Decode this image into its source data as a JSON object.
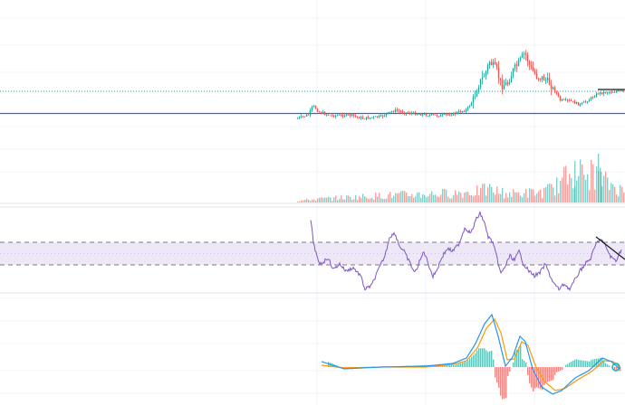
{
  "chart_data": [
    {
      "type": "candlestick",
      "pane": "price",
      "title": "",
      "horizontal_lines": [
        {
          "style": "dotted",
          "color": "#26a69a",
          "level": 0.72
        },
        {
          "style": "solid",
          "color": "#2962ff",
          "level": 0.28
        }
      ],
      "trendline": {
        "color": "#131722",
        "style": "solid"
      }
    },
    {
      "type": "bar",
      "pane": "volume",
      "title": "",
      "colors": {
        "up": "#26a69a",
        "down": "#ef5350"
      }
    },
    {
      "type": "line",
      "pane": "rsi",
      "title": "",
      "band": {
        "upper": 70,
        "lower": 30,
        "fill": "#ede7f6"
      },
      "line_color": "#7e57c2",
      "trendline_color": "#131722"
    },
    {
      "type": "line",
      "pane": "macd",
      "title": "",
      "series_colors": {
        "macd": "#2196f3",
        "signal": "#ff9800",
        "hist_up": "#26a69a",
        "hist_down": "#ef5350"
      }
    }
  ],
  "colors": {
    "grid": "#f0f3fa",
    "pane_separator": "#e0e3eb",
    "up": "#26a69a",
    "down": "#ef5350",
    "rsi": "#7e57c2",
    "macd": "#2196f3",
    "signal": "#ff9800",
    "trend": "#131722",
    "hline": "#2962ff"
  },
  "icons": {
    "end_marker": "circle-marker-icon"
  }
}
